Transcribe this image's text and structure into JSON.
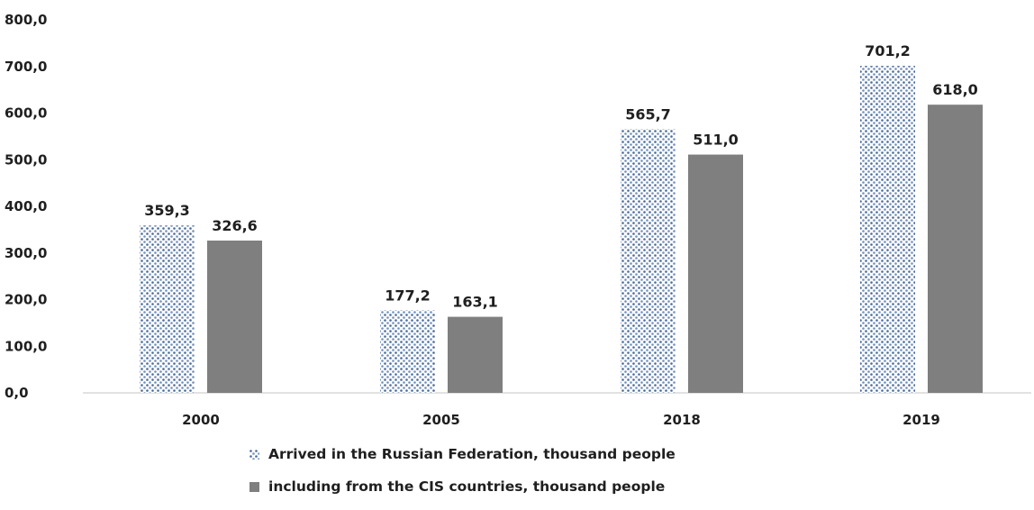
{
  "chart_data": {
    "type": "bar",
    "categories": [
      "2000",
      "2005",
      "2018",
      "2019"
    ],
    "series": [
      {
        "name": "Arrived in the Russian Federation, thousand people",
        "values": [
          359.3,
          177.2,
          565.7,
          701.2
        ],
        "labels": [
          "359,3",
          "177,2",
          "565,7",
          "701,2"
        ],
        "pattern": "dots",
        "color": "#4a6a9a"
      },
      {
        "name": "including from the CIS countries, thousand people",
        "values": [
          326.6,
          163.1,
          511.0,
          618.0
        ],
        "labels": [
          "326,6",
          "163,1",
          "511,0",
          "618,0"
        ],
        "pattern": "solid",
        "color": "#7f7f7f"
      }
    ],
    "yticks": [
      "0,0",
      "100,0",
      "200,0",
      "300,0",
      "400,0",
      "500,0",
      "600,0",
      "700,0",
      "800,0"
    ],
    "ylim": [
      0,
      800
    ],
    "grid": false,
    "legend_position": "bottom"
  }
}
